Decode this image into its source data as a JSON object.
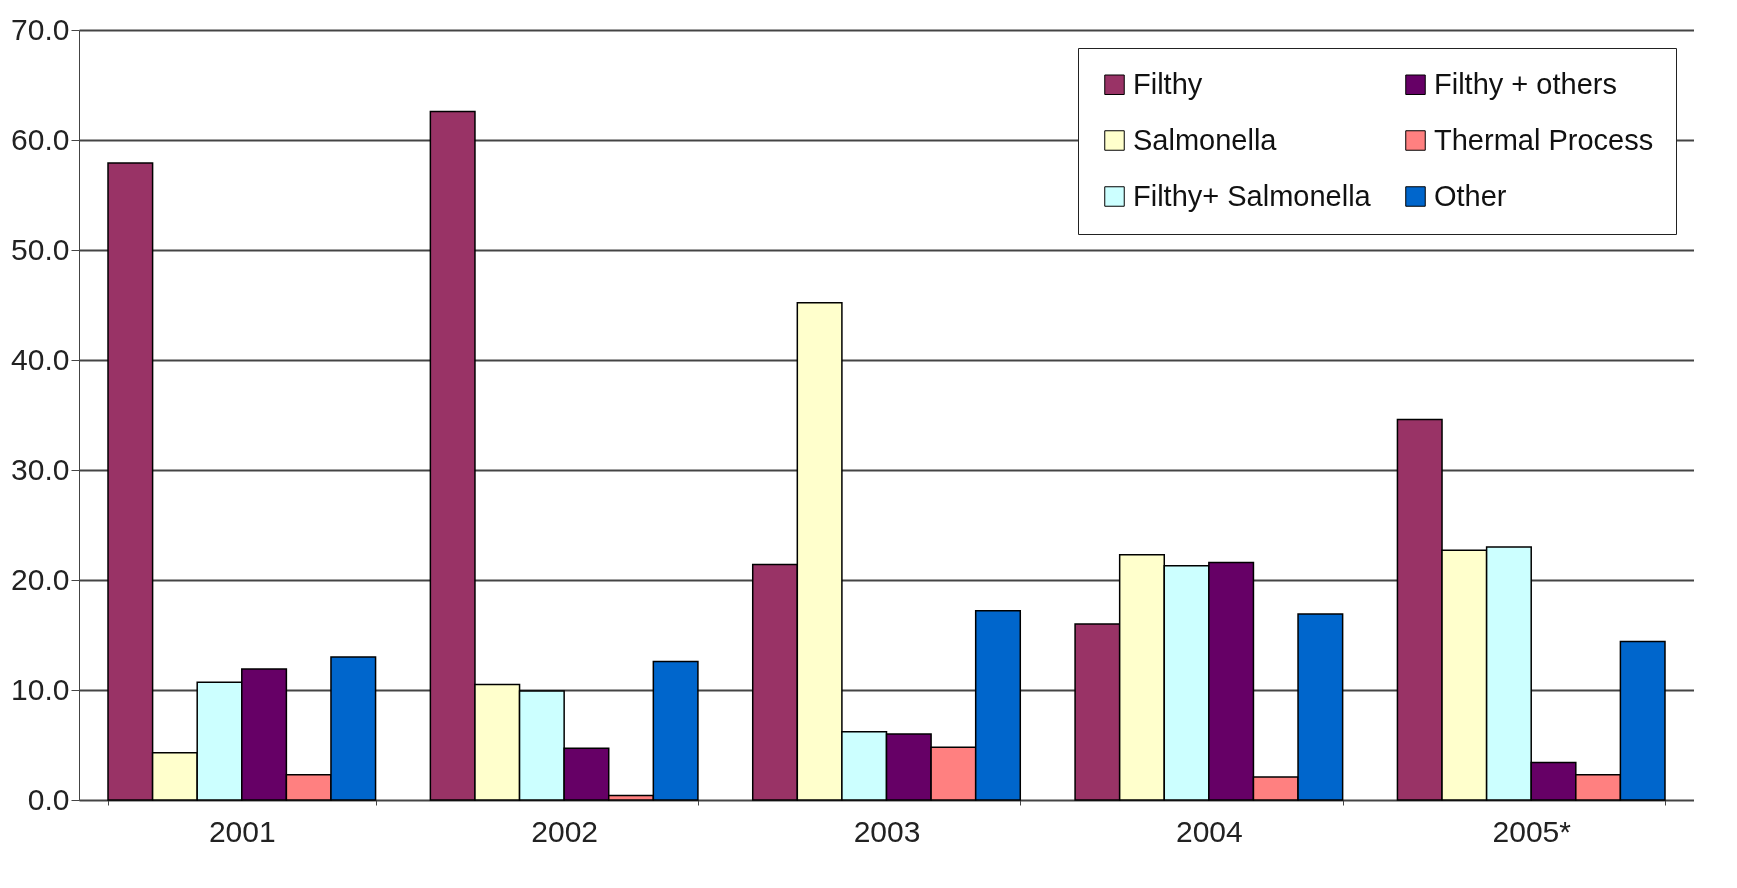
{
  "chart_data": {
    "type": "bar",
    "categories": [
      "2001",
      "2002",
      "2003",
      "2004",
      "2005*"
    ],
    "series": [
      {
        "name": "Filthy",
        "color": "#993366",
        "values": [
          57.9,
          62.6,
          21.4,
          16.0,
          34.6
        ]
      },
      {
        "name": "Salmonella",
        "color": "#ffffcc",
        "values": [
          4.3,
          10.5,
          45.2,
          22.3,
          22.7
        ]
      },
      {
        "name": "Filthy+ Salmonella",
        "color": "#ccffff",
        "values": [
          10.7,
          9.9,
          6.2,
          21.3,
          23.0
        ]
      },
      {
        "name": "Filthy + others",
        "color": "#660066",
        "values": [
          11.9,
          4.7,
          6.0,
          21.6,
          3.4
        ]
      },
      {
        "name": "Thermal Process",
        "color": "#ff8080",
        "values": [
          2.3,
          0.4,
          4.8,
          2.1,
          2.3
        ]
      },
      {
        "name": "Other",
        "color": "#0066cc",
        "values": [
          13.0,
          12.6,
          17.2,
          16.9,
          14.4
        ]
      }
    ],
    "ylim": [
      0,
      70
    ],
    "yticks": [
      {
        "value": 0,
        "label": "0.0"
      },
      {
        "value": 10,
        "label": "10.0"
      },
      {
        "value": 20,
        "label": "20.0"
      },
      {
        "value": 30,
        "label": "30.0"
      },
      {
        "value": 40,
        "label": "40.0"
      },
      {
        "value": 50,
        "label": "50.0"
      },
      {
        "value": 60,
        "label": "60.0"
      },
      {
        "value": 70,
        "label": "70.0"
      }
    ],
    "grid": "y",
    "legend": "top right"
  }
}
